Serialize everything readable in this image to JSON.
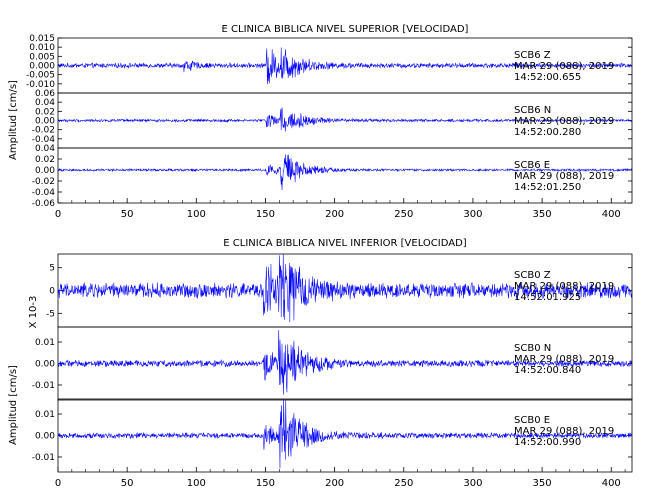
{
  "chart_data": [
    {
      "type": "line",
      "title": "E CLINICA BIBLICA NIVEL SUPERIOR [VELOCIDAD]",
      "ylabel": "Amplitud [cm/s]",
      "xlim": [
        0,
        415
      ],
      "x_ticks": [
        "0",
        "50",
        "100",
        "150",
        "200",
        "250",
        "300",
        "350",
        "400"
      ],
      "grid": false,
      "series_color": "#0000ff",
      "channels": [
        {
          "station": "SCB6",
          "component": "Z",
          "date": "MAR 29 (088), 2019",
          "time": "14:52:00.655",
          "ylim": [
            -0.015,
            0.015
          ],
          "y_ticks": [
            "0.015",
            "0.010",
            "0.005",
            "0.000",
            "-0.005",
            "-0.010"
          ],
          "noise": 0.0011,
          "events": [
            {
              "t": 92,
              "amp": 0.0028,
              "decay": 6
            },
            {
              "t": 152,
              "amp": 0.009,
              "decay": 10
            },
            {
              "t": 162,
              "amp": 0.006,
              "decay": 14
            }
          ]
        },
        {
          "station": "SCB6",
          "component": "N",
          "date": "MAR 29 (088), 2019",
          "time": "14:52:00.280",
          "ylim": [
            -0.06,
            0.06
          ],
          "y_ticks": [
            "0.06",
            "0.04",
            "0.02",
            "0.00",
            "-0.02",
            "-0.04"
          ],
          "noise": 0.0025,
          "events": [
            {
              "t": 152,
              "amp": 0.012,
              "decay": 8
            },
            {
              "t": 162,
              "amp": 0.03,
              "decay": 14
            }
          ]
        },
        {
          "station": "SCB6",
          "component": "E",
          "date": "MAR 29 (088), 2019",
          "time": "14:52:01.250",
          "ylim": [
            -0.06,
            0.04
          ],
          "y_ticks": [
            "0.04",
            "0.02",
            "0.00",
            "-0.02",
            "-0.04",
            "-0.06"
          ],
          "noise": 0.0018,
          "events": [
            {
              "t": 152,
              "amp": 0.01,
              "decay": 8
            },
            {
              "t": 162,
              "amp": 0.035,
              "decay": 12
            }
          ]
        }
      ]
    },
    {
      "type": "line",
      "title": "E CLINICA BIBLICA NIVEL INFERIOR [VELOCIDAD]",
      "ylabel": "Amplitud [cm/s]",
      "scale_note": "X 10-3",
      "xlim": [
        0,
        415
      ],
      "x_ticks": [
        "0",
        "50",
        "100",
        "150",
        "200",
        "250",
        "300",
        "350",
        "400"
      ],
      "grid": false,
      "series_color": "#0000ff",
      "channels": [
        {
          "station": "SCB0",
          "component": "Z",
          "date": "MAR 29 (088), 2019",
          "time": "14:52:01.925",
          "ylim": [
            -8,
            8
          ],
          "y_ticks": [
            "5",
            "0",
            "-5"
          ],
          "noise": 1.4,
          "events": [
            {
              "t": 150,
              "amp": 6,
              "decay": 8
            },
            {
              "t": 161,
              "amp": 7,
              "decay": 14
            }
          ]
        },
        {
          "station": "SCB0",
          "component": "N",
          "date": "MAR 29 (088), 2019",
          "time": "14:52:00.840",
          "ylim": [
            -0.017,
            0.017
          ],
          "y_ticks": [
            "0.01",
            "0.00",
            "-0.01"
          ],
          "noise": 0.0013,
          "events": [
            {
              "t": 150,
              "amp": 0.006,
              "decay": 8
            },
            {
              "t": 161,
              "amp": 0.013,
              "decay": 14
            }
          ]
        },
        {
          "station": "SCB0",
          "component": "E",
          "date": "MAR 29 (088), 2019",
          "time": "14:52:00.990",
          "ylim": [
            -0.017,
            0.017
          ],
          "y_ticks": [
            "0.01",
            "0.00",
            "-0.01"
          ],
          "noise": 0.0011,
          "events": [
            {
              "t": 150,
              "amp": 0.005,
              "decay": 8
            },
            {
              "t": 161,
              "amp": 0.015,
              "decay": 14
            }
          ]
        }
      ]
    }
  ]
}
